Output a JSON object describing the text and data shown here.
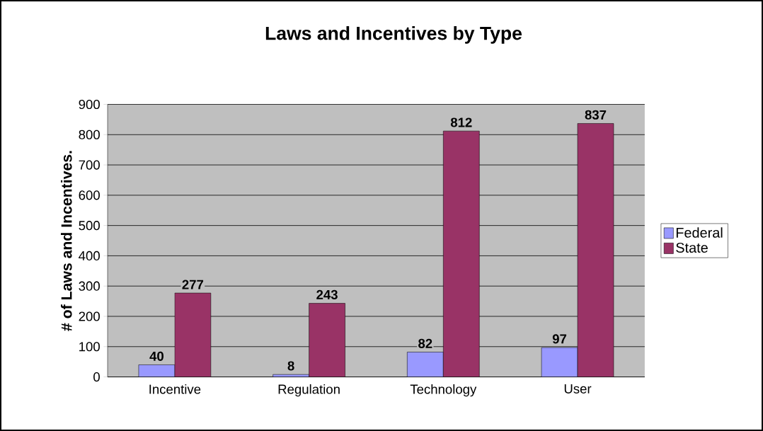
{
  "chart_data": {
    "type": "bar",
    "title": "Laws and Incentives by Type",
    "ylabel": "# of Laws and Incentives.",
    "categories": [
      "Incentive",
      "Regulation",
      "Technology",
      "User"
    ],
    "series": [
      {
        "name": "Federal",
        "color": "#9999ff",
        "values": [
          40,
          8,
          82,
          97
        ]
      },
      {
        "name": "State",
        "color": "#993366",
        "values": [
          277,
          243,
          812,
          837
        ]
      }
    ],
    "ylim": [
      0,
      900
    ],
    "yticks": [
      0,
      100,
      200,
      300,
      400,
      500,
      600,
      700,
      800,
      900
    ],
    "grid": "y",
    "legend": "right",
    "data_labels": true
  }
}
